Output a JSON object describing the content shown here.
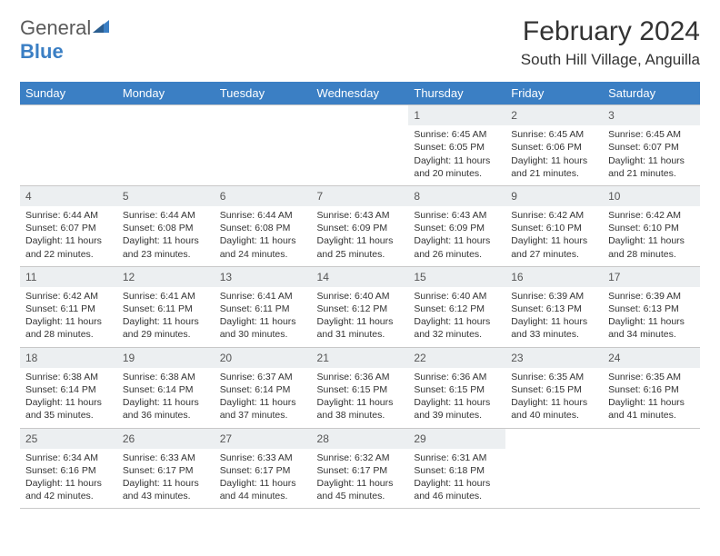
{
  "brand": {
    "part1": "General",
    "part2": "Blue"
  },
  "title": "February 2024",
  "location": "South Hill Village, Anguilla",
  "colors": {
    "header_bg": "#3b7fc4",
    "header_text": "#ffffff",
    "daynum_bg": "#eceff1",
    "border": "#c8c8c8",
    "text": "#333333"
  },
  "weekdays": [
    "Sunday",
    "Monday",
    "Tuesday",
    "Wednesday",
    "Thursday",
    "Friday",
    "Saturday"
  ],
  "weeks": [
    [
      null,
      null,
      null,
      null,
      {
        "n": "1",
        "sr": "Sunrise: 6:45 AM",
        "ss": "Sunset: 6:05 PM",
        "dl": "Daylight: 11 hours and 20 minutes."
      },
      {
        "n": "2",
        "sr": "Sunrise: 6:45 AM",
        "ss": "Sunset: 6:06 PM",
        "dl": "Daylight: 11 hours and 21 minutes."
      },
      {
        "n": "3",
        "sr": "Sunrise: 6:45 AM",
        "ss": "Sunset: 6:07 PM",
        "dl": "Daylight: 11 hours and 21 minutes."
      }
    ],
    [
      {
        "n": "4",
        "sr": "Sunrise: 6:44 AM",
        "ss": "Sunset: 6:07 PM",
        "dl": "Daylight: 11 hours and 22 minutes."
      },
      {
        "n": "5",
        "sr": "Sunrise: 6:44 AM",
        "ss": "Sunset: 6:08 PM",
        "dl": "Daylight: 11 hours and 23 minutes."
      },
      {
        "n": "6",
        "sr": "Sunrise: 6:44 AM",
        "ss": "Sunset: 6:08 PM",
        "dl": "Daylight: 11 hours and 24 minutes."
      },
      {
        "n": "7",
        "sr": "Sunrise: 6:43 AM",
        "ss": "Sunset: 6:09 PM",
        "dl": "Daylight: 11 hours and 25 minutes."
      },
      {
        "n": "8",
        "sr": "Sunrise: 6:43 AM",
        "ss": "Sunset: 6:09 PM",
        "dl": "Daylight: 11 hours and 26 minutes."
      },
      {
        "n": "9",
        "sr": "Sunrise: 6:42 AM",
        "ss": "Sunset: 6:10 PM",
        "dl": "Daylight: 11 hours and 27 minutes."
      },
      {
        "n": "10",
        "sr": "Sunrise: 6:42 AM",
        "ss": "Sunset: 6:10 PM",
        "dl": "Daylight: 11 hours and 28 minutes."
      }
    ],
    [
      {
        "n": "11",
        "sr": "Sunrise: 6:42 AM",
        "ss": "Sunset: 6:11 PM",
        "dl": "Daylight: 11 hours and 28 minutes."
      },
      {
        "n": "12",
        "sr": "Sunrise: 6:41 AM",
        "ss": "Sunset: 6:11 PM",
        "dl": "Daylight: 11 hours and 29 minutes."
      },
      {
        "n": "13",
        "sr": "Sunrise: 6:41 AM",
        "ss": "Sunset: 6:11 PM",
        "dl": "Daylight: 11 hours and 30 minutes."
      },
      {
        "n": "14",
        "sr": "Sunrise: 6:40 AM",
        "ss": "Sunset: 6:12 PM",
        "dl": "Daylight: 11 hours and 31 minutes."
      },
      {
        "n": "15",
        "sr": "Sunrise: 6:40 AM",
        "ss": "Sunset: 6:12 PM",
        "dl": "Daylight: 11 hours and 32 minutes."
      },
      {
        "n": "16",
        "sr": "Sunrise: 6:39 AM",
        "ss": "Sunset: 6:13 PM",
        "dl": "Daylight: 11 hours and 33 minutes."
      },
      {
        "n": "17",
        "sr": "Sunrise: 6:39 AM",
        "ss": "Sunset: 6:13 PM",
        "dl": "Daylight: 11 hours and 34 minutes."
      }
    ],
    [
      {
        "n": "18",
        "sr": "Sunrise: 6:38 AM",
        "ss": "Sunset: 6:14 PM",
        "dl": "Daylight: 11 hours and 35 minutes."
      },
      {
        "n": "19",
        "sr": "Sunrise: 6:38 AM",
        "ss": "Sunset: 6:14 PM",
        "dl": "Daylight: 11 hours and 36 minutes."
      },
      {
        "n": "20",
        "sr": "Sunrise: 6:37 AM",
        "ss": "Sunset: 6:14 PM",
        "dl": "Daylight: 11 hours and 37 minutes."
      },
      {
        "n": "21",
        "sr": "Sunrise: 6:36 AM",
        "ss": "Sunset: 6:15 PM",
        "dl": "Daylight: 11 hours and 38 minutes."
      },
      {
        "n": "22",
        "sr": "Sunrise: 6:36 AM",
        "ss": "Sunset: 6:15 PM",
        "dl": "Daylight: 11 hours and 39 minutes."
      },
      {
        "n": "23",
        "sr": "Sunrise: 6:35 AM",
        "ss": "Sunset: 6:15 PM",
        "dl": "Daylight: 11 hours and 40 minutes."
      },
      {
        "n": "24",
        "sr": "Sunrise: 6:35 AM",
        "ss": "Sunset: 6:16 PM",
        "dl": "Daylight: 11 hours and 41 minutes."
      }
    ],
    [
      {
        "n": "25",
        "sr": "Sunrise: 6:34 AM",
        "ss": "Sunset: 6:16 PM",
        "dl": "Daylight: 11 hours and 42 minutes."
      },
      {
        "n": "26",
        "sr": "Sunrise: 6:33 AM",
        "ss": "Sunset: 6:17 PM",
        "dl": "Daylight: 11 hours and 43 minutes."
      },
      {
        "n": "27",
        "sr": "Sunrise: 6:33 AM",
        "ss": "Sunset: 6:17 PM",
        "dl": "Daylight: 11 hours and 44 minutes."
      },
      {
        "n": "28",
        "sr": "Sunrise: 6:32 AM",
        "ss": "Sunset: 6:17 PM",
        "dl": "Daylight: 11 hours and 45 minutes."
      },
      {
        "n": "29",
        "sr": "Sunrise: 6:31 AM",
        "ss": "Sunset: 6:18 PM",
        "dl": "Daylight: 11 hours and 46 minutes."
      },
      null,
      null
    ]
  ]
}
